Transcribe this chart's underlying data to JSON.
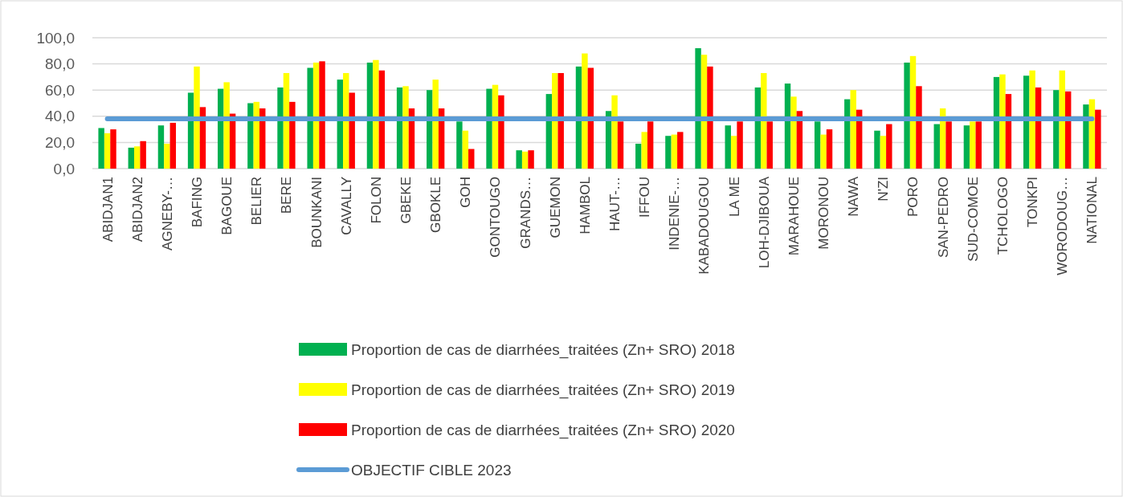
{
  "chart_data": {
    "type": "bar",
    "categories": [
      "ABIDJAN1",
      "ABIDJAN2",
      "AGNEBY-…",
      "BAFING",
      "BAGOUE",
      "BELIER",
      "BERE",
      "BOUNKANI",
      "CAVALLY",
      "FOLON",
      "GBEKE",
      "GBOKLE",
      "GOH",
      "GONTOUGO",
      "GRANDS…",
      "GUEMON",
      "HAMBOL",
      "HAUT-…",
      "IFFOU",
      "INDENIE-…",
      "KABADOUGOU",
      "LA ME",
      "LOH-DJIBOUA",
      "MARAHOUE",
      "MORONOU",
      "NAWA",
      "N'ZI",
      "PORO",
      "SAN-PEDRO",
      "SUD-COMOE",
      "TCHOLOGO",
      "TONKPI",
      "WORODOUG…",
      "NATIONAL"
    ],
    "series": [
      {
        "name": "Proportion de cas de diarrhées_traitées (Zn+ SRO) 2018",
        "color": "#00b050",
        "values": [
          31,
          16,
          33,
          58,
          61,
          50,
          62,
          77,
          68,
          81,
          62,
          60,
          36,
          61,
          14,
          57,
          78,
          44,
          19,
          25,
          92,
          33,
          62,
          65,
          36,
          53,
          29,
          81,
          34,
          33,
          70,
          71,
          60,
          49
        ]
      },
      {
        "name": "Proportion de cas de diarrhées_traitées (Zn+ SRO) 2019",
        "color": "#ffff00",
        "values": [
          27,
          17,
          19,
          78,
          66,
          51,
          73,
          81,
          73,
          83,
          63,
          68,
          29,
          64,
          13,
          73,
          88,
          56,
          28,
          26,
          87,
          25,
          73,
          55,
          26,
          60,
          25,
          86,
          46,
          36,
          72,
          75,
          75,
          53
        ]
      },
      {
        "name": "Proportion de cas de diarrhées_traitées (Zn+ SRO) 2020",
        "color": "#ff0000",
        "values": [
          30,
          21,
          35,
          47,
          42,
          46,
          51,
          82,
          58,
          75,
          46,
          46,
          15,
          56,
          14,
          73,
          77,
          36,
          36,
          28,
          78,
          36,
          36,
          44,
          30,
          45,
          34,
          63,
          36,
          36,
          57,
          62,
          59,
          45
        ]
      },
      {
        "name": "OBJECTIF CIBLE 2023",
        "type": "line",
        "color": "#5b9bd5",
        "values": [
          38,
          38,
          38,
          38,
          38,
          38,
          38,
          38,
          38,
          38,
          38,
          38,
          38,
          38,
          38,
          38,
          38,
          38,
          38,
          38,
          38,
          38,
          38,
          38,
          38,
          38,
          38,
          38,
          38,
          38,
          38,
          38,
          38,
          38
        ]
      }
    ],
    "ylim": [
      0,
      100
    ],
    "yticks": [
      {
        "value": 0,
        "label": "0,0"
      },
      {
        "value": 20,
        "label": "20,0"
      },
      {
        "value": 40,
        "label": "40,0"
      },
      {
        "value": 60,
        "label": "60,0"
      },
      {
        "value": 80,
        "label": "80,0"
      },
      {
        "value": 100,
        "label": "100,0"
      }
    ],
    "grid": "y",
    "legend": "bottom"
  }
}
